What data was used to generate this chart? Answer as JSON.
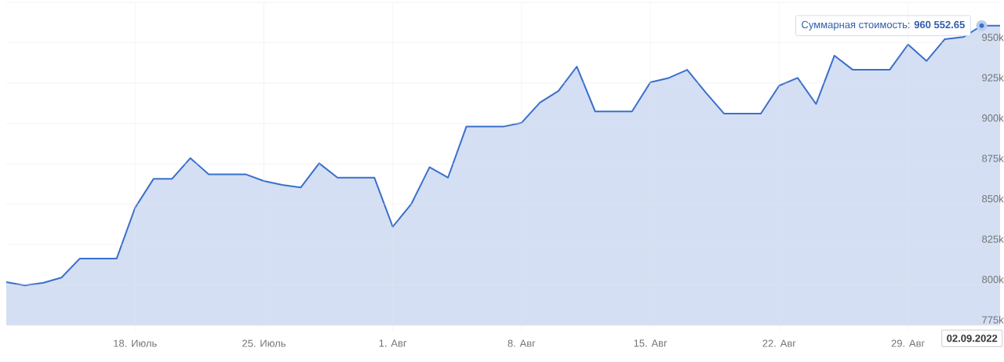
{
  "chart_data": {
    "type": "area",
    "x": [
      "2022-07-11",
      "2022-07-12",
      "2022-07-13",
      "2022-07-14",
      "2022-07-15",
      "2022-07-16",
      "2022-07-17",
      "2022-07-18",
      "2022-07-19",
      "2022-07-20",
      "2022-07-21",
      "2022-07-22",
      "2022-07-23",
      "2022-07-24",
      "2022-07-25",
      "2022-07-26",
      "2022-07-27",
      "2022-07-28",
      "2022-07-29",
      "2022-07-30",
      "2022-07-31",
      "2022-08-01",
      "2022-08-02",
      "2022-08-03",
      "2022-08-04",
      "2022-08-05",
      "2022-08-06",
      "2022-08-07",
      "2022-08-08",
      "2022-08-09",
      "2022-08-10",
      "2022-08-11",
      "2022-08-12",
      "2022-08-13",
      "2022-08-14",
      "2022-08-15",
      "2022-08-16",
      "2022-08-17",
      "2022-08-18",
      "2022-08-19",
      "2022-08-20",
      "2022-08-21",
      "2022-08-22",
      "2022-08-23",
      "2022-08-24",
      "2022-08-25",
      "2022-08-26",
      "2022-08-27",
      "2022-08-28",
      "2022-08-29",
      "2022-08-30",
      "2022-08-31",
      "2022-09-01",
      "2022-09-02",
      "2022-09-03"
    ],
    "series": [
      {
        "color": "#3a6fcc",
        "values": [
          801700,
          799600,
          801200,
          804500,
          816300,
          816300,
          816300,
          847800,
          865600,
          865600,
          878500,
          868500,
          868500,
          868500,
          864300,
          861900,
          860300,
          875300,
          866400,
          866400,
          866400,
          836000,
          849900,
          872900,
          866400,
          898000,
          898000,
          898000,
          900400,
          912900,
          920100,
          935200,
          907400,
          907400,
          907400,
          925500,
          928200,
          933200,
          919200,
          906100,
          906100,
          906100,
          923400,
          928200,
          912000,
          942000,
          933200,
          933200,
          933200,
          948900,
          938700,
          952200,
          953500,
          960552.65,
          960552.65
        ]
      }
    ],
    "xlim": [
      "2022-07-11",
      "2022-09-03"
    ],
    "xticks": [
      {
        "value": "2022-07-18",
        "label": "18. Июль"
      },
      {
        "value": "2022-07-25",
        "label": "25. Июль"
      },
      {
        "value": "2022-08-01",
        "label": "1. Авг"
      },
      {
        "value": "2022-08-08",
        "label": "8. Авг"
      },
      {
        "value": "2022-08-15",
        "label": "15. Авг"
      },
      {
        "value": "2022-08-22",
        "label": "22. Авг"
      },
      {
        "value": "2022-08-29",
        "label": "29. Авг"
      }
    ],
    "ylim": [
      775000,
      975000
    ],
    "yticks": [
      {
        "value": 775000,
        "label": "775k"
      },
      {
        "value": 800000,
        "label": "800k"
      },
      {
        "value": 825000,
        "label": "825k"
      },
      {
        "value": 850000,
        "label": "850k"
      },
      {
        "value": 875000,
        "label": "875k"
      },
      {
        "value": 900000,
        "label": "900k"
      },
      {
        "value": 925000,
        "label": "925k"
      },
      {
        "value": 950000,
        "label": "950k"
      },
      {
        "value": 975000,
        "label": null
      }
    ],
    "grid": true,
    "annotations": [
      {
        "text": "Суммарная стоимость: **960 552.65**",
        "x": "2022-09-02",
        "y": 960552.65
      },
      "02.09.2022"
    ]
  }
}
